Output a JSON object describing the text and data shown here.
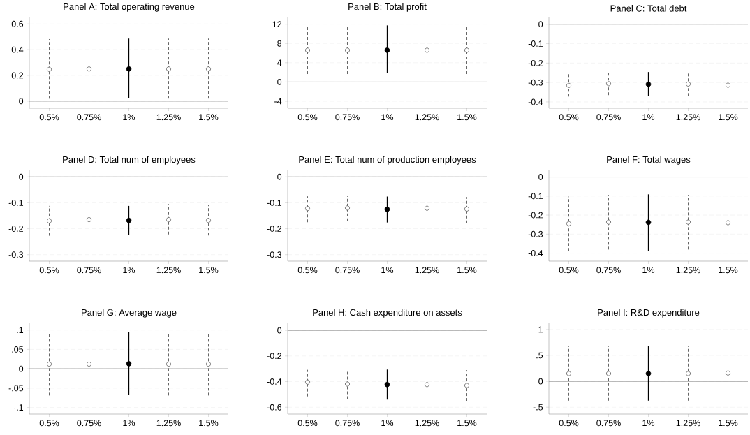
{
  "chart_data": [
    {
      "type": "scatter",
      "title": "Panel A: Total operating revenue",
      "categories": [
        "0.5%",
        "0.75%",
        "1%",
        "1.25%",
        "1.5%"
      ],
      "marker": "circle",
      "grid": "y",
      "ylim": [
        -0.055,
        0.65
      ],
      "yticks": [
        0,
        0.2,
        0.4,
        0.6
      ],
      "ref_lines": [
        {
          "axis": "y",
          "value": 0,
          "color": "#808080"
        }
      ],
      "series": [
        {
          "color": "#555555",
          "line_style": "dashed",
          "values": [
            0.247,
            0.25,
            null,
            0.25,
            0.25
          ],
          "errors": [
            [
              0.019,
              0.482
            ],
            [
              0.019,
              0.486
            ],
            null,
            [
              0.02,
              0.486
            ],
            [
              0.02,
              0.486
            ]
          ]
        },
        {
          "color": "#000000",
          "line_style": "solid",
          "values": [
            null,
            null,
            0.25,
            null,
            null
          ],
          "errors": [
            null,
            null,
            [
              0.022,
              0.486
            ],
            null,
            null
          ]
        }
      ]
    },
    {
      "type": "scatter",
      "title": "Panel B: Total profit",
      "categories": [
        "0.5%",
        "0.75%",
        "1%",
        "1.25%",
        "1.5%"
      ],
      "marker": "circle",
      "grid": "y",
      "ylim": [
        -5.45,
        13.4
      ],
      "yticks": [
        -4,
        0,
        4,
        8,
        12
      ],
      "ref_lines": [
        {
          "axis": "y",
          "value": 0,
          "color": "#808080"
        }
      ],
      "series": [
        {
          "color": "#555555",
          "line_style": "dashed",
          "values": [
            6.6,
            6.6,
            null,
            6.6,
            6.6
          ],
          "errors": [
            [
              1.65,
              11.4
            ],
            [
              1.65,
              11.4
            ],
            null,
            [
              1.65,
              11.4
            ],
            [
              1.65,
              11.4
            ]
          ]
        },
        {
          "color": "#000000",
          "line_style": "solid",
          "values": [
            null,
            null,
            6.6,
            null,
            null
          ],
          "errors": [
            null,
            null,
            [
              1.85,
              11.75
            ],
            null,
            null
          ]
        }
      ]
    },
    {
      "type": "scatter",
      "title": "Panel C: Total debt",
      "categories": [
        "0.5%",
        "0.75%",
        "1%",
        "1.25%",
        "1.5%"
      ],
      "marker": "circle",
      "grid": "y",
      "ylim": [
        -0.4325,
        0.035
      ],
      "yticks": [
        -0.4,
        -0.3,
        -0.2,
        -0.1,
        0
      ],
      "ref_lines": [
        {
          "axis": "y",
          "value": 0,
          "color": "#808080"
        }
      ],
      "series": [
        {
          "color": "#555555",
          "line_style": "dashed",
          "values": [
            -0.315,
            -0.306,
            null,
            -0.308,
            -0.314
          ],
          "errors": [
            [
              -0.3725,
              -0.254
            ],
            [
              -0.365,
              -0.245
            ],
            null,
            [
              -0.369,
              -0.245
            ],
            [
              -0.3775,
              -0.2475
            ]
          ]
        },
        {
          "color": "#000000",
          "line_style": "solid",
          "values": [
            null,
            null,
            -0.309,
            null,
            null
          ],
          "errors": [
            null,
            null,
            [
              -0.37,
              -0.246
            ],
            null,
            null
          ]
        }
      ]
    },
    {
      "type": "scatter",
      "title": "Panel D: Total num of employees",
      "categories": [
        "0.5%",
        "0.75%",
        "1%",
        "1.25%",
        "1.5%"
      ],
      "marker": "circle",
      "grid": "y",
      "ylim": [
        -0.325,
        0.025
      ],
      "yticks": [
        -0.3,
        -0.2,
        -0.1,
        0
      ],
      "ref_lines": [
        {
          "axis": "y",
          "value": 0,
          "color": "#808080"
        }
      ],
      "series": [
        {
          "color": "#555555",
          "line_style": "dashed",
          "values": [
            -0.17,
            -0.165,
            null,
            -0.165,
            -0.168
          ],
          "errors": [
            [
              -0.227,
              -0.112
            ],
            [
              -0.222,
              -0.105
            ],
            null,
            [
              -0.222,
              -0.105
            ],
            [
              -0.226,
              -0.109
            ]
          ]
        },
        {
          "color": "#000000",
          "line_style": "solid",
          "values": [
            null,
            null,
            -0.168,
            null,
            null
          ],
          "errors": [
            null,
            null,
            [
              -0.224,
              -0.112
            ],
            null,
            null
          ]
        }
      ]
    },
    {
      "type": "scatter",
      "title": "Panel E: Total num of production employees",
      "categories": [
        "0.5%",
        "0.75%",
        "1%",
        "1.25%",
        "1.5%"
      ],
      "marker": "circle",
      "grid": "y",
      "ylim": [
        -0.325,
        0.025
      ],
      "yticks": [
        -0.3,
        -0.2,
        -0.1,
        0
      ],
      "ref_lines": [
        {
          "axis": "y",
          "value": 0,
          "color": "#808080"
        }
      ],
      "series": [
        {
          "color": "#555555",
          "line_style": "dashed",
          "values": [
            -0.122,
            -0.12,
            null,
            -0.121,
            -0.124
          ],
          "errors": [
            [
              -0.175,
              -0.075
            ],
            [
              -0.171,
              -0.072
            ],
            null,
            [
              -0.174,
              -0.073
            ],
            [
              -0.179,
              -0.078
            ]
          ]
        },
        {
          "color": "#000000",
          "line_style": "solid",
          "values": [
            null,
            null,
            -0.125,
            null,
            null
          ],
          "errors": [
            null,
            null,
            [
              -0.176,
              -0.076
            ],
            null,
            null
          ]
        }
      ]
    },
    {
      "type": "scatter",
      "title": "Panel F: Total wages",
      "categories": [
        "0.5%",
        "0.75%",
        "1%",
        "1.25%",
        "1.5%"
      ],
      "marker": "circle",
      "grid": "y",
      "ylim": [
        -0.442,
        0.035
      ],
      "yticks": [
        -0.4,
        -0.3,
        -0.2,
        -0.1,
        0
      ],
      "ref_lines": [
        {
          "axis": "y",
          "value": 0,
          "color": "#808080"
        }
      ],
      "series": [
        {
          "color": "#555555",
          "line_style": "dashed",
          "values": [
            -0.245,
            -0.237,
            null,
            -0.237,
            -0.24
          ],
          "errors": [
            [
              -0.388,
              -0.103
            ],
            [
              -0.381,
              -0.094
            ],
            null,
            [
              -0.381,
              -0.094
            ],
            [
              -0.386,
              -0.096
            ]
          ]
        },
        {
          "color": "#000000",
          "line_style": "solid",
          "values": [
            null,
            null,
            -0.238,
            null,
            null
          ],
          "errors": [
            null,
            null,
            [
              -0.388,
              -0.091
            ],
            null,
            null
          ]
        }
      ]
    },
    {
      "type": "scatter",
      "title": "Panel G: Average wage",
      "categories": [
        "0.5%",
        "0.75%",
        "1%",
        "1.25%",
        "1.5%"
      ],
      "marker": "circle",
      "grid": "y",
      "ylim": [
        -0.117,
        0.1175
      ],
      "yticks": [
        {
          "value": -0.1,
          "label": "-.1"
        },
        {
          "value": -0.05,
          "label": "-.05"
        },
        0,
        {
          "value": 0.05,
          "label": ".05"
        },
        {
          "value": 0.1,
          "label": ".1"
        }
      ],
      "ref_lines": [
        {
          "axis": "y",
          "value": 0,
          "color": "#808080"
        }
      ],
      "series": [
        {
          "color": "#555555",
          "line_style": "dashed",
          "values": [
            0.012,
            0.012,
            null,
            0.012,
            0.012
          ],
          "errors": [
            [
              -0.069,
              0.089
            ],
            [
              -0.069,
              0.089
            ],
            null,
            [
              -0.069,
              0.089
            ],
            [
              -0.069,
              0.089
            ]
          ]
        },
        {
          "color": "#000000",
          "line_style": "solid",
          "values": [
            null,
            null,
            0.013,
            null,
            null
          ],
          "errors": [
            null,
            null,
            [
              -0.068,
              0.094
            ],
            null,
            null
          ]
        }
      ]
    },
    {
      "type": "scatter",
      "title": "Panel H: Cash expenditure on assets",
      "categories": [
        "0.5%",
        "0.75%",
        "1%",
        "1.25%",
        "1.5%"
      ],
      "marker": "circle",
      "grid": "y",
      "ylim": [
        -0.653,
        0.055
      ],
      "yticks": [
        -0.6,
        -0.4,
        -0.2,
        0
      ],
      "ref_lines": [
        {
          "axis": "y",
          "value": 0,
          "color": "#808080"
        }
      ],
      "series": [
        {
          "color": "#555555",
          "line_style": "dashed",
          "values": [
            -0.404,
            -0.419,
            null,
            -0.423,
            -0.43
          ],
          "errors": [
            [
              -0.515,
              -0.308
            ],
            [
              -0.536,
              -0.308
            ],
            null,
            [
              -0.54,
              -0.302
            ],
            [
              -0.55,
              -0.311
            ]
          ]
        },
        {
          "color": "#000000",
          "line_style": "solid",
          "values": [
            null,
            null,
            -0.423,
            null,
            null
          ],
          "errors": [
            null,
            null,
            [
              -0.54,
              -0.306
            ],
            null,
            null
          ]
        }
      ]
    },
    {
      "type": "scatter",
      "title": "Panel I: R&D expenditure",
      "categories": [
        "0.5%",
        "0.75%",
        "1%",
        "1.25%",
        "1.5%"
      ],
      "marker": "circle",
      "grid": "y",
      "ylim": [
        -0.632,
        1.12
      ],
      "yticks": [
        {
          "value": -0.5,
          "label": "-.5"
        },
        0,
        {
          "value": 0.5,
          "label": ".5"
        },
        1
      ],
      "ref_lines": [
        {
          "axis": "y",
          "value": 0,
          "color": "#808080"
        }
      ],
      "series": [
        {
          "color": "#555555",
          "line_style": "dashed",
          "values": [
            0.15,
            0.15,
            null,
            0.15,
            0.16
          ],
          "errors": [
            [
              -0.373,
              0.675
            ],
            [
              -0.373,
              0.675
            ],
            null,
            [
              -0.373,
              0.675
            ],
            [
              -0.373,
              0.675
            ]
          ]
        },
        {
          "color": "#000000",
          "line_style": "solid",
          "values": [
            null,
            null,
            0.15,
            null,
            null
          ],
          "errors": [
            null,
            null,
            [
              -0.373,
              0.675
            ],
            null,
            null
          ]
        }
      ]
    }
  ]
}
